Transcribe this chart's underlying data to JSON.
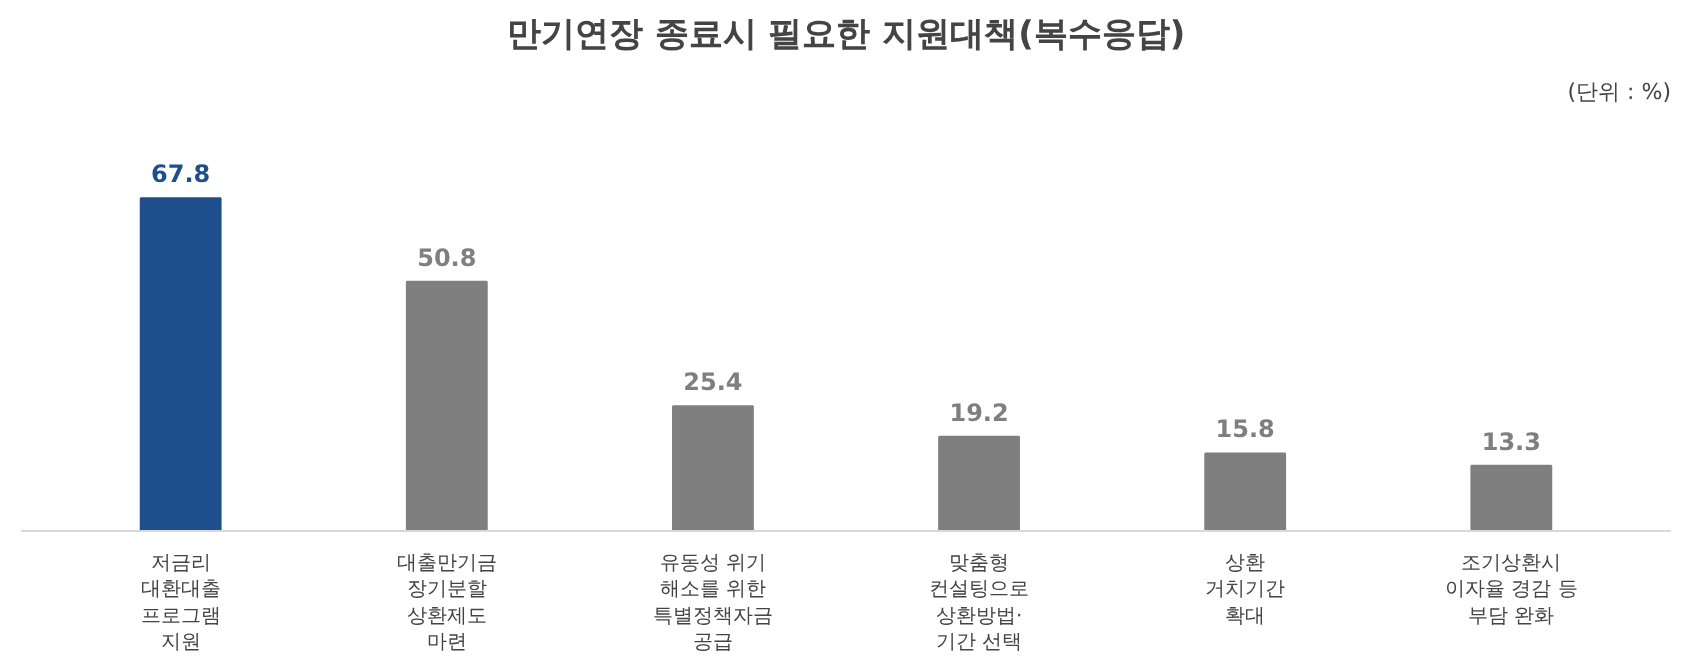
{
  "chart_data": {
    "type": "bar",
    "title": "만기연장 종료시 필요한 지원대책(복수응답)",
    "annotations": [
      "(단위 : %)"
    ],
    "categories": [
      "저금리\n대환대출\n프로그램\n지원",
      "대출만기금\n장기분할\n상환제도\n마련",
      "유동성 위기\n해소를 위한\n특별정책자금\n공급",
      "맞춤형\n컨설팅으로\n상환방법·\n기간 선택",
      "상환\n거치기간\n확대",
      "조기상환시\n이자율 경감 등\n부담 완화"
    ],
    "values": [
      67.8,
      50.8,
      25.4,
      19.2,
      15.8,
      13.3
    ],
    "colors": [
      "#1f4e8c",
      "#7f7f7f",
      "#7f7f7f",
      "#7f7f7f",
      "#7f7f7f",
      "#7f7f7f"
    ],
    "data_labels": true
  }
}
